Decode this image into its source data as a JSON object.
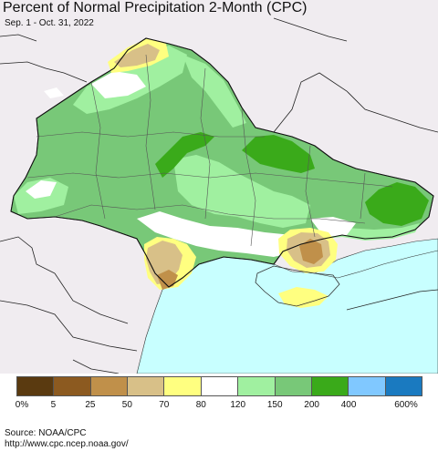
{
  "title": "Percent of Normal Precipitation 2-Month (CPC)",
  "subtitle": "Sep. 1 - Oct. 31, 2022",
  "legend": {
    "colors": [
      "#5a3a10",
      "#8c5a20",
      "#c0904a",
      "#d8c088",
      "#ffff80",
      "#ffffff",
      "#a0f0a0",
      "#78c878",
      "#3aaa1a",
      "#80c8ff",
      "#1a7ac0"
    ],
    "labels": [
      "0%",
      "5",
      "25",
      "50",
      "70",
      "80",
      "120",
      "150",
      "200",
      "400",
      "600%"
    ]
  },
  "source_line1": "Source: NOAA/CPC",
  "source_line2": "http://www.cpc.ncep.noaa.gov/",
  "map_colors": {
    "background": "#f0ecf0",
    "sea": "#c8ffff",
    "light_green": "#a0f0a0",
    "medium_green": "#78c878",
    "dark_green": "#3aaa1a",
    "white": "#ffffff",
    "yellow": "#ffff80",
    "tan": "#d8c088",
    "light_brown": "#c0904a"
  }
}
